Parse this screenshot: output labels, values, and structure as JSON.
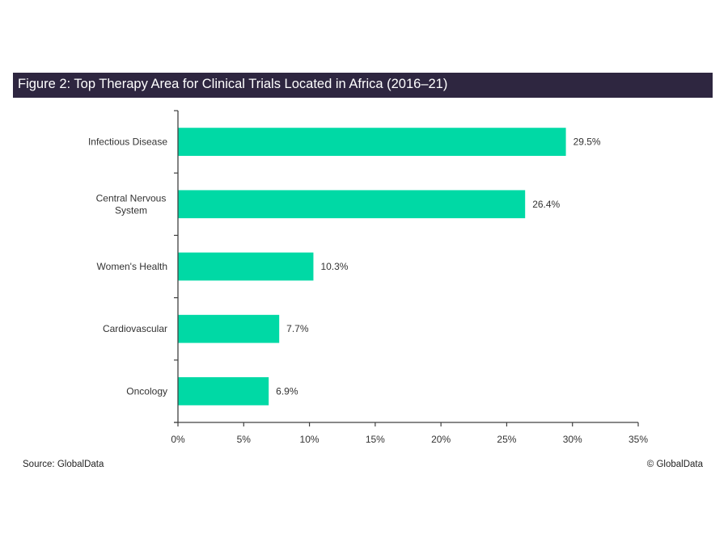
{
  "header": {
    "title": "Figure 2: Top Therapy Area for Clinical Trials Located in Africa (2016–21)"
  },
  "colors": {
    "header_bg": "#2e2640",
    "bar": "#00d9a5",
    "axis": "#404040"
  },
  "chart_data": {
    "type": "bar",
    "orientation": "horizontal",
    "title": "Figure 2: Top Therapy Area for Clinical Trials Located in Africa (2016–21)",
    "categories": [
      [
        "Infectious Disease"
      ],
      [
        "Central Nervous",
        "System"
      ],
      [
        "Women's Health"
      ],
      [
        "Cardiovascular"
      ],
      [
        "Oncology"
      ]
    ],
    "category_names": [
      "Infectious Disease",
      "Central Nervous System",
      "Women's Health",
      "Cardiovascular",
      "Oncology"
    ],
    "values": [
      29.5,
      26.4,
      10.3,
      7.7,
      6.9
    ],
    "value_labels": [
      "29.5%",
      "26.4%",
      "10.3%",
      "7.7%",
      "6.9%"
    ],
    "xlabel": "",
    "ylabel": "",
    "xlim": [
      0,
      35
    ],
    "xticks": [
      0,
      5,
      10,
      15,
      20,
      25,
      30,
      35
    ],
    "xtick_labels": [
      "0%",
      "5%",
      "10%",
      "15%",
      "20%",
      "25%",
      "30%",
      "35%"
    ],
    "grid": false,
    "legend": "none"
  },
  "footer": {
    "source": "Source: GlobalData",
    "copyright": "© GlobalData"
  }
}
